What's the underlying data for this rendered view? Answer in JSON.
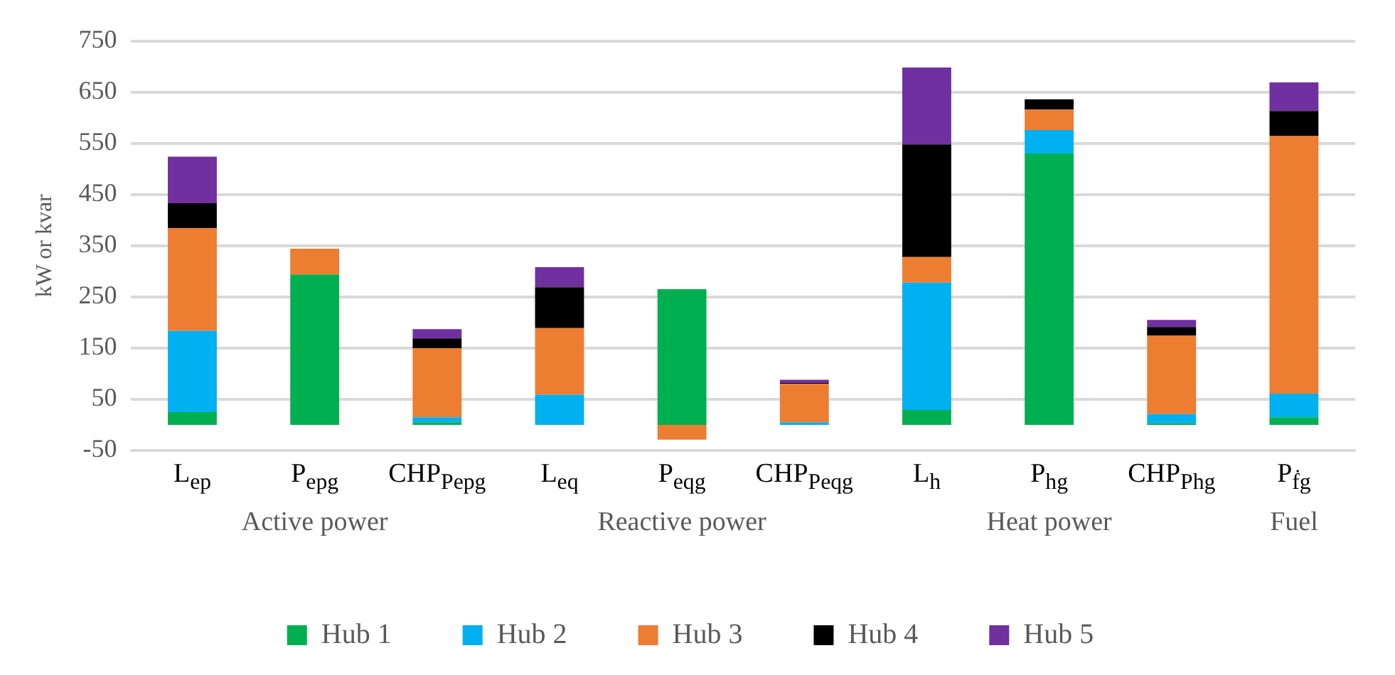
{
  "chart_data": {
    "type": "bar",
    "stacked": true,
    "ylabel": "kW or kvar",
    "categories": [
      "L$_{ep}$",
      "P$_{epg}$",
      "CHP$_{Pepg}$",
      "L$_{eq}$",
      "P$_{eqg}$",
      "CHP$_{Peqg}$",
      "L$_{h}$",
      "P$_{hg}$",
      "CHP$_{Phg}$",
      "P$_{ḟg}$"
    ],
    "series": [
      {
        "name": "Hub 1",
        "color": "#00b050",
        "values": [
          25,
          294,
          5,
          0,
          265,
          0,
          29,
          530,
          3,
          15
        ]
      },
      {
        "name": "Hub 2",
        "color": "#00b0f0",
        "values": [
          159,
          0,
          10,
          59,
          0,
          5,
          249,
          46,
          18,
          46
        ]
      },
      {
        "name": "Hub 3",
        "color": "#ed7d31",
        "values": [
          200,
          50,
          135,
          130,
          -29,
          75,
          50,
          40,
          153,
          503
        ]
      },
      {
        "name": "Hub 4",
        "color": "#000000",
        "values": [
          49,
          0,
          19,
          80,
          0,
          2,
          220,
          20,
          17,
          49
        ]
      },
      {
        "name": "Hub 5",
        "color": "#7030a0",
        "values": [
          91,
          0,
          18,
          39,
          0,
          6,
          150,
          0,
          14,
          56
        ]
      }
    ],
    "annotations": [
      "Active power",
      "Reactive power",
      "Heat power",
      "Fuel"
    ],
    "ylim": [
      -50,
      750
    ],
    "yticks": [
      -50,
      50,
      150,
      250,
      350,
      450,
      550,
      650,
      750
    ],
    "grid": "y",
    "legend": "bottom"
  }
}
